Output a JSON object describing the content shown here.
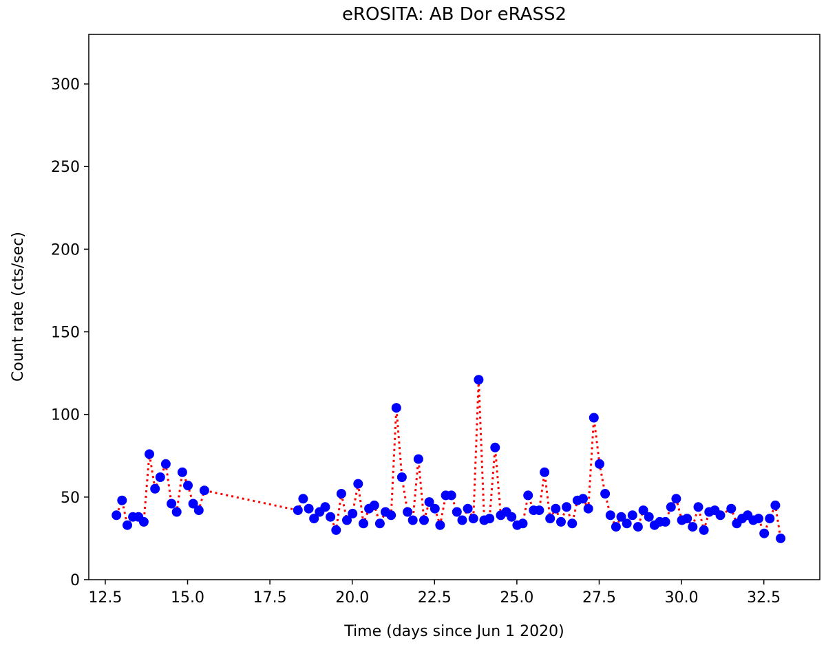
{
  "chart_data": {
    "type": "scatter",
    "title": "eROSITA:  AB Dor   eRASS2",
    "xlabel": "Time (days since Jun 1 2020)",
    "ylabel": "Count rate (cts/sec)",
    "xlim": [
      12.0,
      34.2
    ],
    "ylim": [
      0,
      330
    ],
    "x_ticks": [
      12.5,
      15.0,
      17.5,
      20.0,
      22.5,
      25.0,
      27.5,
      30.0,
      32.5
    ],
    "x_tick_labels": [
      "12.5",
      "15.0",
      "17.5",
      "20.0",
      "22.5",
      "25.0",
      "27.5",
      "30.0",
      "32.5"
    ],
    "y_ticks": [
      0,
      50,
      100,
      150,
      200,
      250,
      300
    ],
    "y_tick_labels": [
      "0",
      "50",
      "100",
      "150",
      "200",
      "250",
      "300"
    ],
    "grid": false,
    "legend": "none",
    "colors": {
      "points": "#0000ff",
      "line": "#ff0000"
    },
    "series": [
      {
        "marker": "circle",
        "line_style": "dotted",
        "x": [
          12.84,
          13.01,
          13.17,
          13.34,
          13.51,
          13.67,
          13.84,
          14.01,
          14.17,
          14.34,
          14.51,
          14.67,
          14.84,
          15.01,
          15.17,
          15.34,
          15.51,
          18.35,
          18.51,
          18.68,
          18.84,
          19.01,
          19.18,
          19.34,
          19.51,
          19.67,
          19.84,
          20.01,
          20.18,
          20.34,
          20.51,
          20.67,
          20.84,
          21.01,
          21.18,
          21.34,
          21.51,
          21.68,
          21.84,
          22.01,
          22.18,
          22.34,
          22.51,
          22.67,
          22.84,
          23.01,
          23.18,
          23.34,
          23.51,
          23.68,
          23.84,
          24.01,
          24.17,
          24.34,
          24.51,
          24.68,
          24.84,
          25.01,
          25.18,
          25.34,
          25.51,
          25.68,
          25.84,
          26.01,
          26.18,
          26.34,
          26.51,
          26.68,
          26.84,
          27.01,
          27.17,
          27.34,
          27.51,
          27.68,
          27.84,
          28.01,
          28.17,
          28.34,
          28.51,
          28.68,
          28.84,
          29.01,
          29.18,
          29.34,
          29.51,
          29.68,
          29.84,
          30.01,
          30.17,
          30.34,
          30.51,
          30.68,
          30.84,
          31.01,
          31.18,
          31.51,
          31.68,
          31.84,
          32.01,
          32.18,
          32.34,
          32.51,
          32.68,
          32.85,
          33.01
        ],
        "y": [
          39,
          48,
          33,
          38,
          38,
          35,
          76,
          55,
          62,
          70,
          46,
          41,
          65,
          57,
          46,
          42,
          54,
          42,
          49,
          43,
          37,
          41,
          44,
          38,
          30,
          52,
          36,
          40,
          58,
          34,
          43,
          45,
          34,
          41,
          39,
          104,
          62,
          41,
          36,
          73,
          36,
          47,
          43,
          33,
          51,
          51,
          41,
          36,
          43,
          37,
          121,
          36,
          37,
          80,
          39,
          41,
          38,
          33,
          34,
          51,
          42,
          42,
          65,
          37,
          43,
          35,
          44,
          34,
          48,
          49,
          43,
          98,
          70,
          52,
          39,
          32,
          38,
          34,
          39,
          32,
          42,
          38,
          33,
          35,
          35,
          44,
          49,
          36,
          37,
          32,
          44,
          30,
          41,
          42,
          39,
          43,
          34,
          37,
          39,
          36,
          37,
          28,
          37,
          45,
          25
        ]
      }
    ]
  }
}
